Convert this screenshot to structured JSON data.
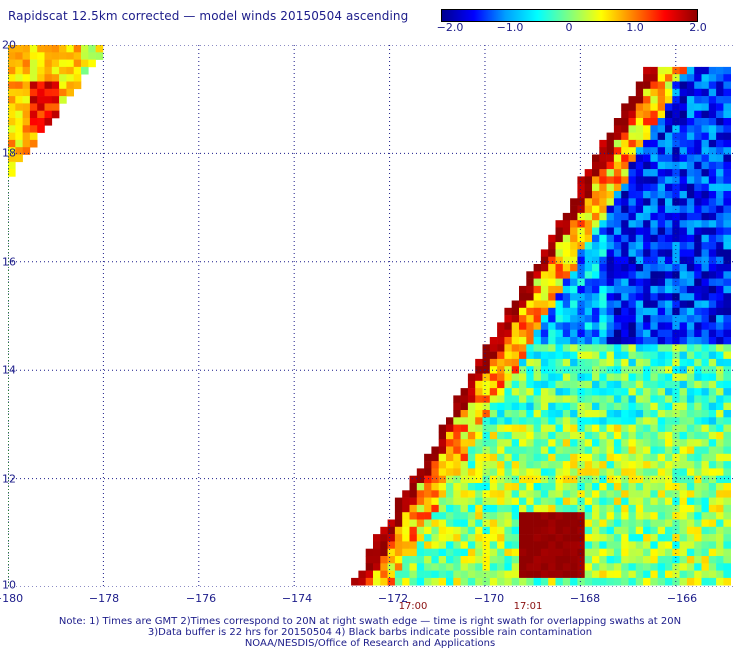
{
  "title": "Rapidscat 12.5km corrected — model winds 20150504 ascending",
  "colorbar": {
    "labels": [
      "−2.0",
      "−1.0",
      "0",
      "1.0",
      "2.0"
    ],
    "values": [
      -2.0,
      -1.0,
      0,
      1.0,
      2.0
    ],
    "range": [
      -2.0,
      2.0
    ],
    "colors": [
      "#000090",
      "#0000ff",
      "#00a0ff",
      "#00ffff",
      "#80ff80",
      "#ffff00",
      "#ff8000",
      "#ff0000",
      "#900000"
    ]
  },
  "map": {
    "lon_labels": [
      "−180",
      "−178",
      "−176",
      "−174",
      "−172",
      "−170",
      "−168",
      "−166"
    ],
    "lon_values": [
      -180,
      -178,
      -176,
      -174,
      -172,
      -170,
      -168,
      -166
    ],
    "lat_labels": [
      "20",
      "18",
      "16",
      "14",
      "12",
      "10"
    ],
    "lat_values": [
      20,
      18,
      16,
      14,
      12,
      10
    ],
    "lon_range": [
      -180,
      -164.8
    ],
    "lat_range": [
      10,
      20
    ],
    "grid": "dotted",
    "island_label": "",
    "time_labels": [
      {
        "text": "17:00",
        "lon": -171.2
      },
      {
        "text": "17:01",
        "lon": -169.0
      }
    ]
  },
  "notes": [
    "Note: 1) Times are GMT 2)Times correspond to 20N at right swath edge — time is right swath for overlapping swaths at 20N",
    "3)Data buffer is 22 hrs for 20150504 4) Black barbs indicate possible rain contamination",
    "NOAA/NESDIS/Office of Research and Applications"
  ]
}
